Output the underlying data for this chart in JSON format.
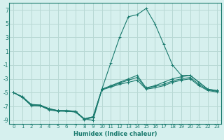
{
  "xlabel": "Humidex (Indice chaleur)",
  "background_color": "#d6f0ee",
  "grid_color": "#b8d8d4",
  "line_color": "#1a7a6e",
  "xlim": [
    -0.5,
    23.5
  ],
  "ylim": [
    -9.5,
    8.0
  ],
  "yticks": [
    -9,
    -7,
    -5,
    -3,
    -1,
    1,
    3,
    5,
    7
  ],
  "xticks": [
    0,
    1,
    2,
    3,
    4,
    5,
    6,
    7,
    8,
    9,
    10,
    11,
    12,
    13,
    14,
    15,
    16,
    17,
    18,
    19,
    20,
    21,
    22,
    23
  ],
  "series": [
    {
      "x": [
        0,
        1,
        2,
        3,
        4,
        5,
        6,
        7,
        8,
        9,
        10,
        11,
        12,
        13,
        14,
        15,
        16,
        17,
        18,
        19,
        20,
        21,
        22,
        23
      ],
      "y": [
        -5.0,
        -5.6,
        -6.7,
        -6.8,
        -7.3,
        -7.6,
        -7.6,
        -7.7,
        -8.8,
        -9.0,
        -4.5,
        -0.7,
        3.0,
        6.0,
        6.3,
        7.2,
        5.0,
        2.0,
        -1.0,
        -2.5,
        -2.5,
        -3.5,
        -4.5,
        -4.7
      ]
    },
    {
      "x": [
        0,
        1,
        2,
        3,
        4,
        5,
        6,
        7,
        8,
        9,
        10,
        11,
        12,
        13,
        14,
        15,
        16,
        17,
        18,
        19,
        20,
        21,
        22,
        23
      ],
      "y": [
        -5.0,
        -5.6,
        -6.8,
        -6.8,
        -7.4,
        -7.6,
        -7.6,
        -7.7,
        -8.8,
        -8.5,
        -4.5,
        -4.0,
        -3.5,
        -3.0,
        -2.5,
        -4.3,
        -4.0,
        -3.5,
        -3.0,
        -2.7,
        -2.5,
        -3.5,
        -4.5,
        -4.7
      ]
    },
    {
      "x": [
        0,
        1,
        2,
        3,
        4,
        5,
        6,
        7,
        8,
        9,
        10,
        11,
        12,
        13,
        14,
        15,
        16,
        17,
        18,
        19,
        20,
        21,
        22,
        23
      ],
      "y": [
        -5.0,
        -5.7,
        -6.8,
        -6.9,
        -7.4,
        -7.6,
        -7.7,
        -7.8,
        -8.8,
        -8.5,
        -4.5,
        -4.1,
        -3.6,
        -3.2,
        -2.8,
        -4.4,
        -4.1,
        -3.8,
        -3.3,
        -3.0,
        -2.8,
        -3.8,
        -4.6,
        -4.8
      ]
    },
    {
      "x": [
        0,
        1,
        2,
        3,
        4,
        5,
        6,
        7,
        8,
        9,
        10,
        11,
        12,
        13,
        14,
        15,
        16,
        17,
        18,
        19,
        20,
        21,
        22,
        23
      ],
      "y": [
        -5.0,
        -5.7,
        -6.9,
        -6.9,
        -7.5,
        -7.7,
        -7.7,
        -7.8,
        -8.9,
        -8.6,
        -4.6,
        -4.2,
        -3.8,
        -3.5,
        -3.2,
        -4.5,
        -4.3,
        -4.0,
        -3.5,
        -3.2,
        -3.0,
        -4.0,
        -4.7,
        -4.9
      ]
    }
  ]
}
